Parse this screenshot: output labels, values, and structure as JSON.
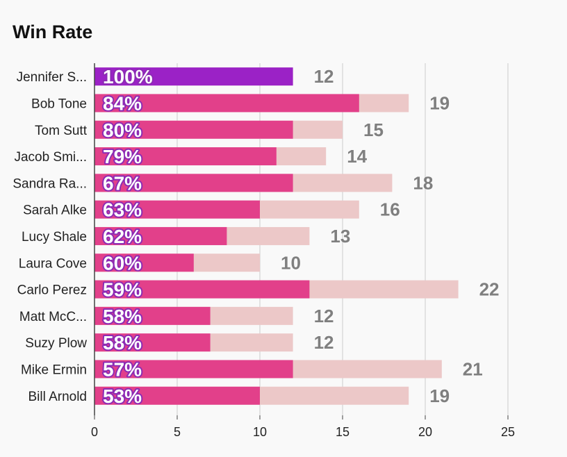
{
  "chart_data": {
    "type": "bar",
    "title": "Win Rate",
    "xlabel": "",
    "ylabel": "",
    "xlim": [
      0,
      25
    ],
    "xticks": [
      0,
      5,
      10,
      15,
      20,
      25
    ],
    "grid": true,
    "categories": [
      "Jennifer S...",
      "Bob Tone",
      "Tom Sutt",
      "Jacob Smi...",
      "Sandra Ra...",
      "Sarah Alke",
      "Lucy Shale",
      "Laura Cove",
      "Carlo Perez",
      "Matt McC...",
      "Suzy Plow",
      "Mike Ermin",
      "Bill Arnold"
    ],
    "series": [
      {
        "values": [
          12,
          16,
          12,
          11,
          12,
          10,
          8,
          6,
          13,
          7,
          7,
          12,
          10
        ]
      },
      {
        "values": [
          12,
          19,
          15,
          14,
          18,
          16,
          13,
          10,
          22,
          12,
          12,
          21,
          19
        ]
      }
    ],
    "win_rate_labels": [
      "100%",
      "84%",
      "80%",
      "79%",
      "67%",
      "63%",
      "62%",
      "60%",
      "59%",
      "58%",
      "58%",
      "57%",
      "53%"
    ],
    "total_labels": [
      "12",
      "19",
      "15",
      "14",
      "18",
      "16",
      "13",
      "10",
      "22",
      "12",
      "12",
      "21",
      "19"
    ],
    "colors": {
      "wins": "#e2408a",
      "top_wins": "#9b22c6",
      "total": "#ecc8c8",
      "grid": "#cccccc",
      "axis": "#444444",
      "pct_outline": "#8c2bb4",
      "total_text": "#7f7f7f"
    }
  }
}
